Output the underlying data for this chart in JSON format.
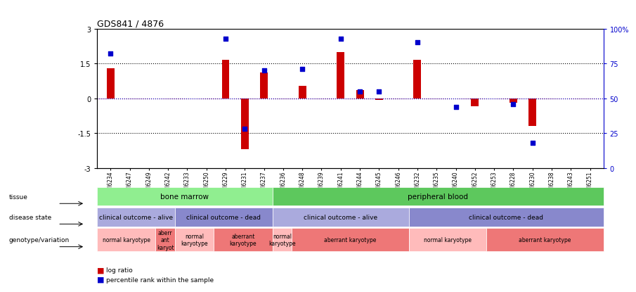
{
  "title": "GDS841 / 4876",
  "samples": [
    "GSM6234",
    "GSM6247",
    "GSM6249",
    "GSM6242",
    "GSM6233",
    "GSM6250",
    "GSM6229",
    "GSM6231",
    "GSM6237",
    "GSM6236",
    "GSM6248",
    "GSM6239",
    "GSM6241",
    "GSM6244",
    "GSM6245",
    "GSM6246",
    "GSM6232",
    "GSM6235",
    "GSM6240",
    "GSM6252",
    "GSM6253",
    "GSM6228",
    "GSM6230",
    "GSM6238",
    "GSM6243",
    "GSM6251"
  ],
  "log_ratio": [
    1.3,
    0.0,
    0.0,
    0.0,
    0.0,
    0.0,
    1.65,
    -2.2,
    1.1,
    0.0,
    0.55,
    0.0,
    2.0,
    0.35,
    -0.08,
    0.0,
    1.65,
    0.0,
    0.0,
    -0.35,
    0.0,
    -0.2,
    -1.2,
    0.0,
    0.0,
    0.0
  ],
  "percentile": [
    82,
    null,
    null,
    null,
    null,
    null,
    93,
    28,
    70,
    null,
    71,
    null,
    93,
    55,
    55,
    null,
    90,
    null,
    44,
    null,
    null,
    46,
    18,
    null,
    null,
    null
  ],
  "ylim_left": [
    -3,
    3
  ],
  "ylim_right": [
    0,
    100
  ],
  "yticks_left": [
    -3,
    -1.5,
    0,
    1.5,
    3
  ],
  "yticks_right": [
    0,
    25,
    50,
    75,
    100
  ],
  "ytick_right_labels": [
    "0",
    "25",
    "50",
    "75",
    "100%"
  ],
  "tissue_groups": [
    {
      "label": "bone marrow",
      "start": 0,
      "end": 8,
      "color": "#90EE90"
    },
    {
      "label": "peripheral blood",
      "start": 9,
      "end": 25,
      "color": "#5DC85D"
    }
  ],
  "disease_groups": [
    {
      "label": "clinical outcome - alive",
      "start": 0,
      "end": 3,
      "color": "#AAAADD"
    },
    {
      "label": "clinical outcome - dead",
      "start": 4,
      "end": 8,
      "color": "#8888CC"
    },
    {
      "label": "clinical outcome - alive",
      "start": 9,
      "end": 15,
      "color": "#AAAADD"
    },
    {
      "label": "clinical outcome - dead",
      "start": 16,
      "end": 25,
      "color": "#8888CC"
    }
  ],
  "geno_groups": [
    {
      "label": "normal karyotype",
      "start": 0,
      "end": 2,
      "color": "#FFBBBB"
    },
    {
      "label": "aberr\nant\nkaryot",
      "start": 3,
      "end": 3,
      "color": "#EE7777"
    },
    {
      "label": "normal\nkaryotype",
      "start": 4,
      "end": 5,
      "color": "#FFBBBB"
    },
    {
      "label": "aberrant\nkaryotype",
      "start": 6,
      "end": 8,
      "color": "#EE7777"
    },
    {
      "label": "normal\nkaryotype",
      "start": 9,
      "end": 9,
      "color": "#FFBBBB"
    },
    {
      "label": "aberrant karyotype",
      "start": 10,
      "end": 15,
      "color": "#EE7777"
    },
    {
      "label": "normal karyotype",
      "start": 16,
      "end": 19,
      "color": "#FFBBBB"
    },
    {
      "label": "aberrant karyotype",
      "start": 20,
      "end": 25,
      "color": "#EE7777"
    }
  ],
  "row_labels": [
    "tissue",
    "disease state",
    "genotype/variation"
  ],
  "bar_color": "#CC0000",
  "dot_color": "#0000CC",
  "bg_color": "#FFFFFF",
  "legend_items": [
    {
      "color": "#CC0000",
      "label": "log ratio"
    },
    {
      "color": "#0000CC",
      "label": "percentile rank within the sample"
    }
  ]
}
